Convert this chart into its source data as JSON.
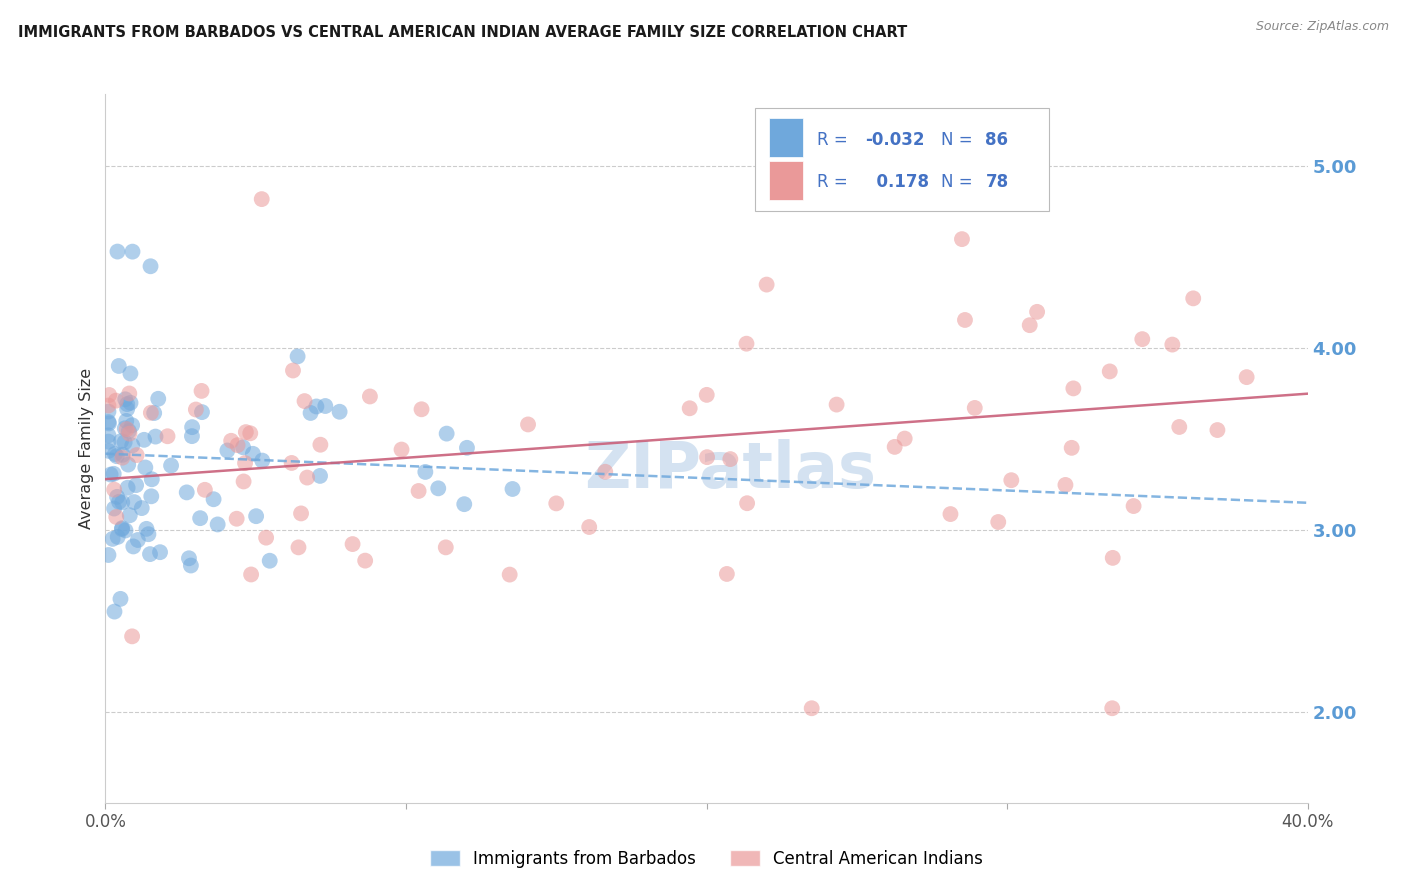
{
  "title": "IMMIGRANTS FROM BARBADOS VS CENTRAL AMERICAN INDIAN AVERAGE FAMILY SIZE CORRELATION CHART",
  "source": "Source: ZipAtlas.com",
  "ylabel": "Average Family Size",
  "xlabel": "",
  "xlim": [
    0.0,
    0.4
  ],
  "ylim": [
    1.5,
    5.4
  ],
  "yticks": [
    2.0,
    3.0,
    4.0,
    5.0
  ],
  "xtick_positions": [
    0.0,
    0.1,
    0.2,
    0.3,
    0.4
  ],
  "xtick_labels": [
    "0.0%",
    "",
    "",
    "",
    "40.0%"
  ],
  "series1_name": "Immigrants from Barbados",
  "series1_R": -0.032,
  "series1_N": 86,
  "series1_color": "#6fa8dc",
  "series1_line_color": "#6fa8dc",
  "series2_name": "Central American Indians",
  "series2_R": 0.178,
  "series2_N": 78,
  "series2_color": "#ea9999",
  "series2_line_color": "#c9607a",
  "background_color": "#ffffff",
  "grid_color": "#cccccc",
  "axis_label_color": "#5b9bd5",
  "title_fontsize": 11,
  "ylabel_fontsize": 11,
  "watermark_text": "ZIPatlas",
  "watermark_color": "#b8d0e8",
  "legend_text_color": "#4472c4",
  "legend_box_color": "#f0f4fb"
}
